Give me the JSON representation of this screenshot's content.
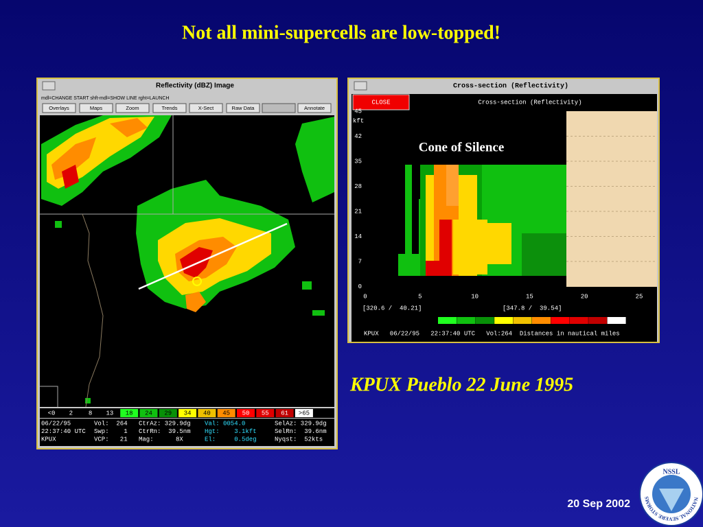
{
  "title": "Not all mini-supercells are low-topped!",
  "ppi_window": {
    "title": "Reflectivity (dBZ) Image",
    "command_line": "mdl=CHANGE START shft-mdl=SHOW LINE rght=LAUNCH",
    "buttons": [
      "Overlays",
      "Maps",
      "Zoom",
      "Trends",
      "X-Sect",
      "Raw Data",
      "Annotate"
    ],
    "color_scale": [
      "<0",
      "2",
      "8",
      "13",
      "18",
      "24",
      "29",
      "34",
      "40",
      "45",
      "50",
      "55",
      "61",
      ">65"
    ],
    "info": [
      [
        "06/22/95",
        "Vol:  264",
        "CtrAz: 329.9dg",
        "Val: 0054.0",
        "SelAz: 329.9dg"
      ],
      [
        "22:37:40 UTC",
        "Swp:    1",
        "CtrRn:  39.5nm",
        "Hgt:    3.1kft",
        "SelRn:  39.6nm"
      ],
      [
        "KPUX",
        "VCP:   21",
        "Mag:      8X",
        "El:     0.5deg",
        "Nyqst:  52kts"
      ]
    ]
  },
  "cross_section_window": {
    "title": "Cross-section (Reflectivity)",
    "close_button": "CLOSE",
    "header": "Cross-section (Reflectivity)",
    "y_axis_labels": [
      "45",
      "42",
      "35",
      "28",
      "21",
      "14",
      "7",
      "0"
    ],
    "y_axis_unit": "kft",
    "x_axis_labels": [
      "0",
      "5",
      "10",
      "15",
      "20",
      "25"
    ],
    "endpoints": [
      "[320.6 /  40.21]",
      "[347.8 /  39.54]"
    ],
    "footer": "KPUX   06/22/95   22:37:40 UTC   Vol:264  Distances in nautical miles"
  },
  "annotation": "Cone of Silence",
  "caption": "KPUX Pueblo 22 June 1995",
  "date": "20 Sep 2002",
  "logo": {
    "acronym": "NSSL",
    "name": "NATIONAL SEVERE STORMS LABORATORY"
  }
}
